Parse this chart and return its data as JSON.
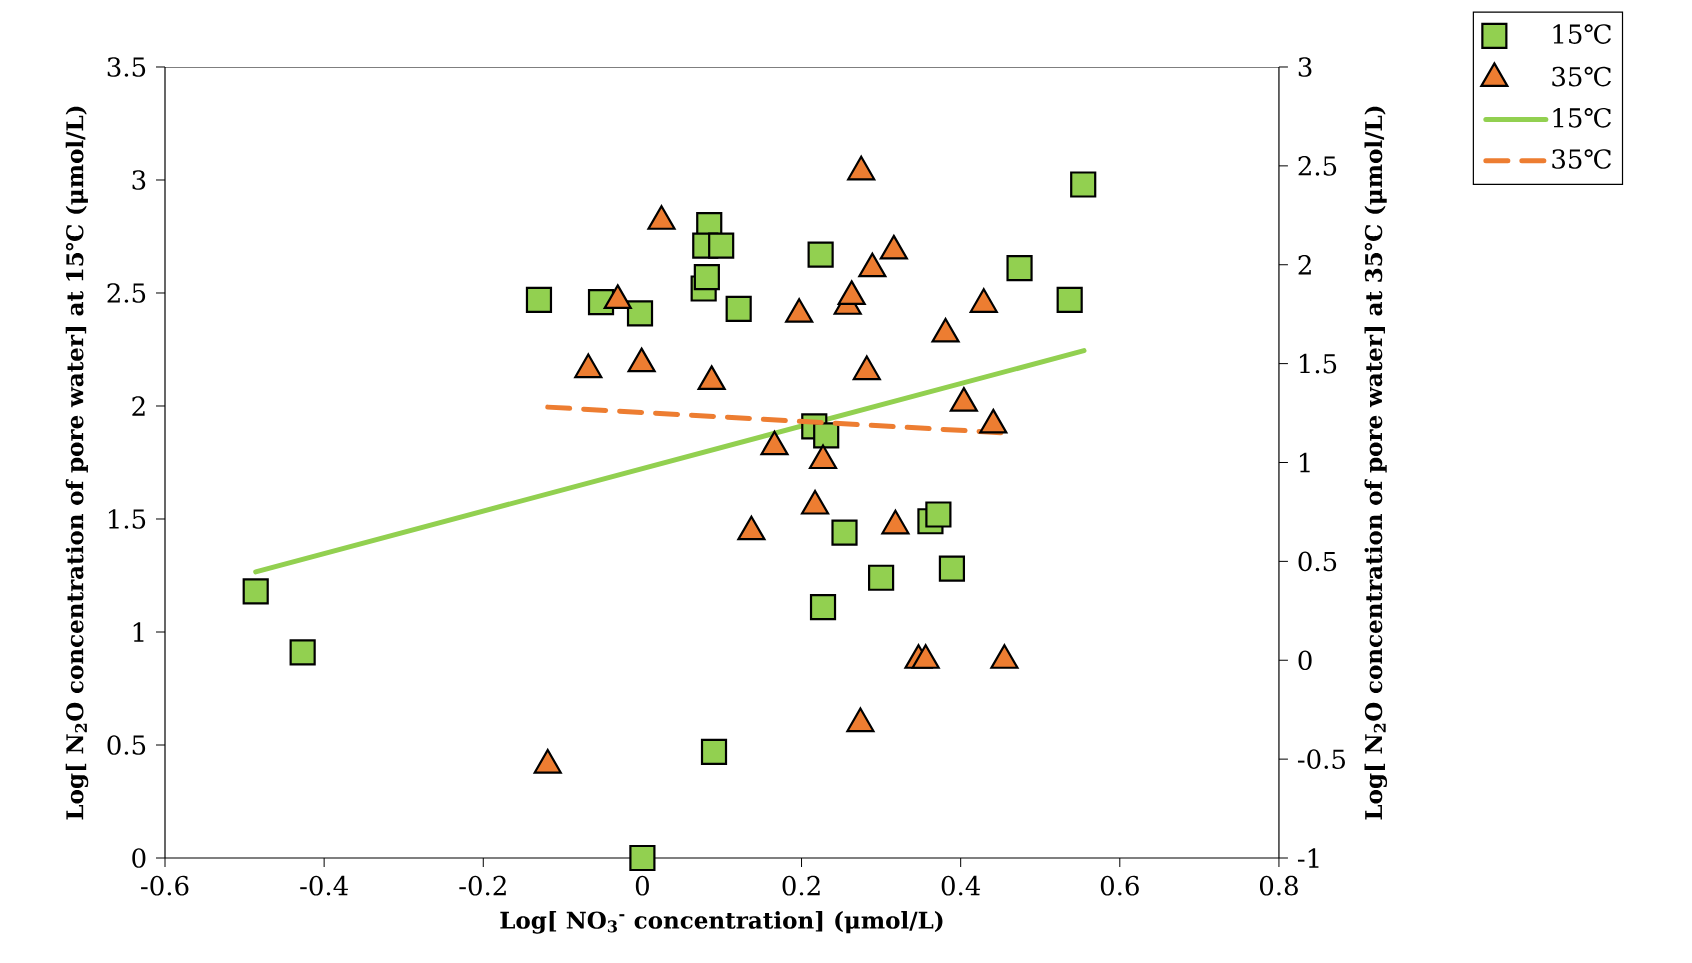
{
  "chart_data": {
    "type": "scatter",
    "xlabel": "**Log[ NO$_{3}$$^{-}$ concentration] (μmol/L)**",
    "ylabel": "**Log[ N$_{2}$O concentration of pore water] at 15℃ (μmol/L)**",
    "y2label": "**Log[ N$_{2}$O concentration of pore water] at 35℃ (μmol/L)**",
    "xlim": [
      -0.6,
      0.8
    ],
    "xticks": [
      -0.6,
      -0.4,
      -0.2,
      0,
      0.2,
      0.4,
      0.6,
      0.8
    ],
    "ylim": [
      0,
      3.5
    ],
    "yticks": [
      0,
      0.5,
      1,
      1.5,
      2,
      2.5,
      3,
      3.5
    ],
    "y2lim": [
      -1,
      3
    ],
    "y2ticks": [
      -1,
      -0.5,
      0,
      0.5,
      1,
      1.5,
      2,
      2.5,
      3
    ],
    "legend": "top right",
    "grid": false,
    "series": [
      {
        "name": "15℃",
        "marker": "square",
        "color": "#92d050",
        "x": [
          -0.486,
          -0.427,
          -0.13,
          -0.052,
          -0.003,
          0,
          0.077,
          0.084,
          0.079,
          0.099,
          0.081,
          0.121,
          0.09,
          0.224,
          0.216,
          0.231,
          0.227,
          0.254,
          0.3,
          0.362,
          0.372,
          0.389,
          0.474,
          0.537,
          0.554
        ],
        "values": [
          1.18,
          0.91,
          2.47,
          2.46,
          2.41,
          0,
          2.52,
          2.8,
          2.71,
          2.71,
          2.57,
          2.43,
          0.47,
          2.67,
          1.91,
          1.87,
          1.11,
          1.44,
          1.24,
          1.49,
          1.52,
          1.28,
          2.61,
          2.47,
          2.98
        ]
      },
      {
        "name": "35℃",
        "marker": "triangle",
        "axis": "y2",
        "color": "#ed7d31",
        "x": [
          -0.119,
          -0.068,
          -0.031,
          -0.001,
          0.024,
          0.087,
          0.137,
          0.166,
          0.197,
          0.217,
          0.227,
          0.258,
          0.263,
          0.274,
          0.275,
          0.282,
          0.289,
          0.318,
          0.316,
          0.347,
          0.356,
          0.381,
          0.404,
          0.429,
          0.441,
          0.455
        ],
        "values": [
          -0.53,
          1.47,
          1.82,
          1.5,
          2.22,
          1.41,
          0.65,
          1.08,
          1.75,
          0.78,
          1.01,
          1.79,
          1.84,
          -0.32,
          2.47,
          1.46,
          1.98,
          0.68,
          2.07,
          0,
          0,
          1.65,
          1.3,
          1.8,
          1.19,
          0
        ]
      },
      {
        "name": "15℃",
        "type": "line",
        "line_style": "solid",
        "color": "#92d050",
        "x": [
          -0.486,
          0.555
        ],
        "values": [
          1.266,
          2.245
        ]
      },
      {
        "name": "35℃",
        "type": "line",
        "line_style": "dashed",
        "axis": "y2",
        "color": "#ed7d31",
        "x": [
          -0.119,
          0.455
        ],
        "values": [
          1.28,
          1.15
        ]
      }
    ]
  }
}
